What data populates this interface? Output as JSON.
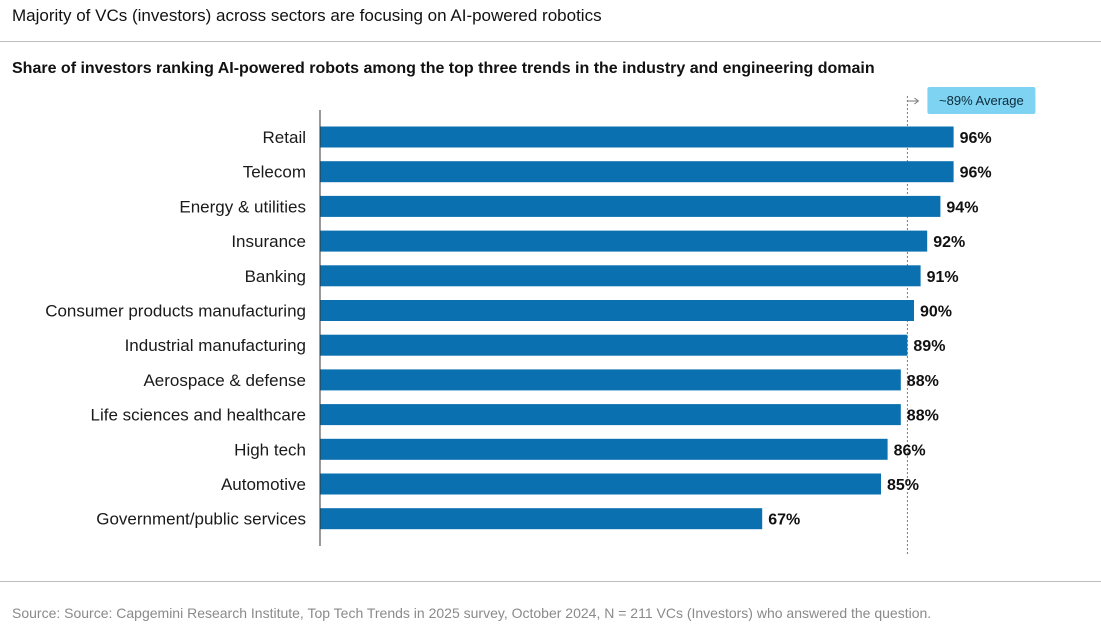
{
  "header": {
    "title": "Majority of VCs (investors) across sectors are focusing on AI-powered robotics"
  },
  "chart_data": {
    "type": "bar",
    "orientation": "horizontal",
    "title": "Share of investors ranking AI-powered robots among the top three trends in the industry and engineering domain",
    "categories": [
      "Retail",
      "Telecom",
      "Energy & utilities",
      "Insurance",
      "Banking",
      "Consumer products manufacturing",
      "Industrial manufacturing",
      "Aerospace & defense",
      "Life sciences and healthcare",
      "High tech",
      "Automotive",
      "Government/public services"
    ],
    "values": [
      96,
      96,
      94,
      92,
      91,
      90,
      89,
      88,
      88,
      86,
      85,
      67
    ],
    "value_labels": [
      "96%",
      "96%",
      "94%",
      "92%",
      "91%",
      "90%",
      "89%",
      "88%",
      "88%",
      "86%",
      "85%",
      "67%"
    ],
    "xlim": [
      0,
      100
    ],
    "grid": false,
    "bar_color": "#0a70b0",
    "reference_line": {
      "value": 89,
      "label": "~89% Average",
      "label_color": "#7fd3f2",
      "line_color": "#7a7a7a"
    }
  },
  "footer": {
    "source": "Source: Source: Capgemini Research Institute, Top Tech Trends in 2025 survey, October 2024, N = 211 VCs (Investors) who answered the question."
  }
}
